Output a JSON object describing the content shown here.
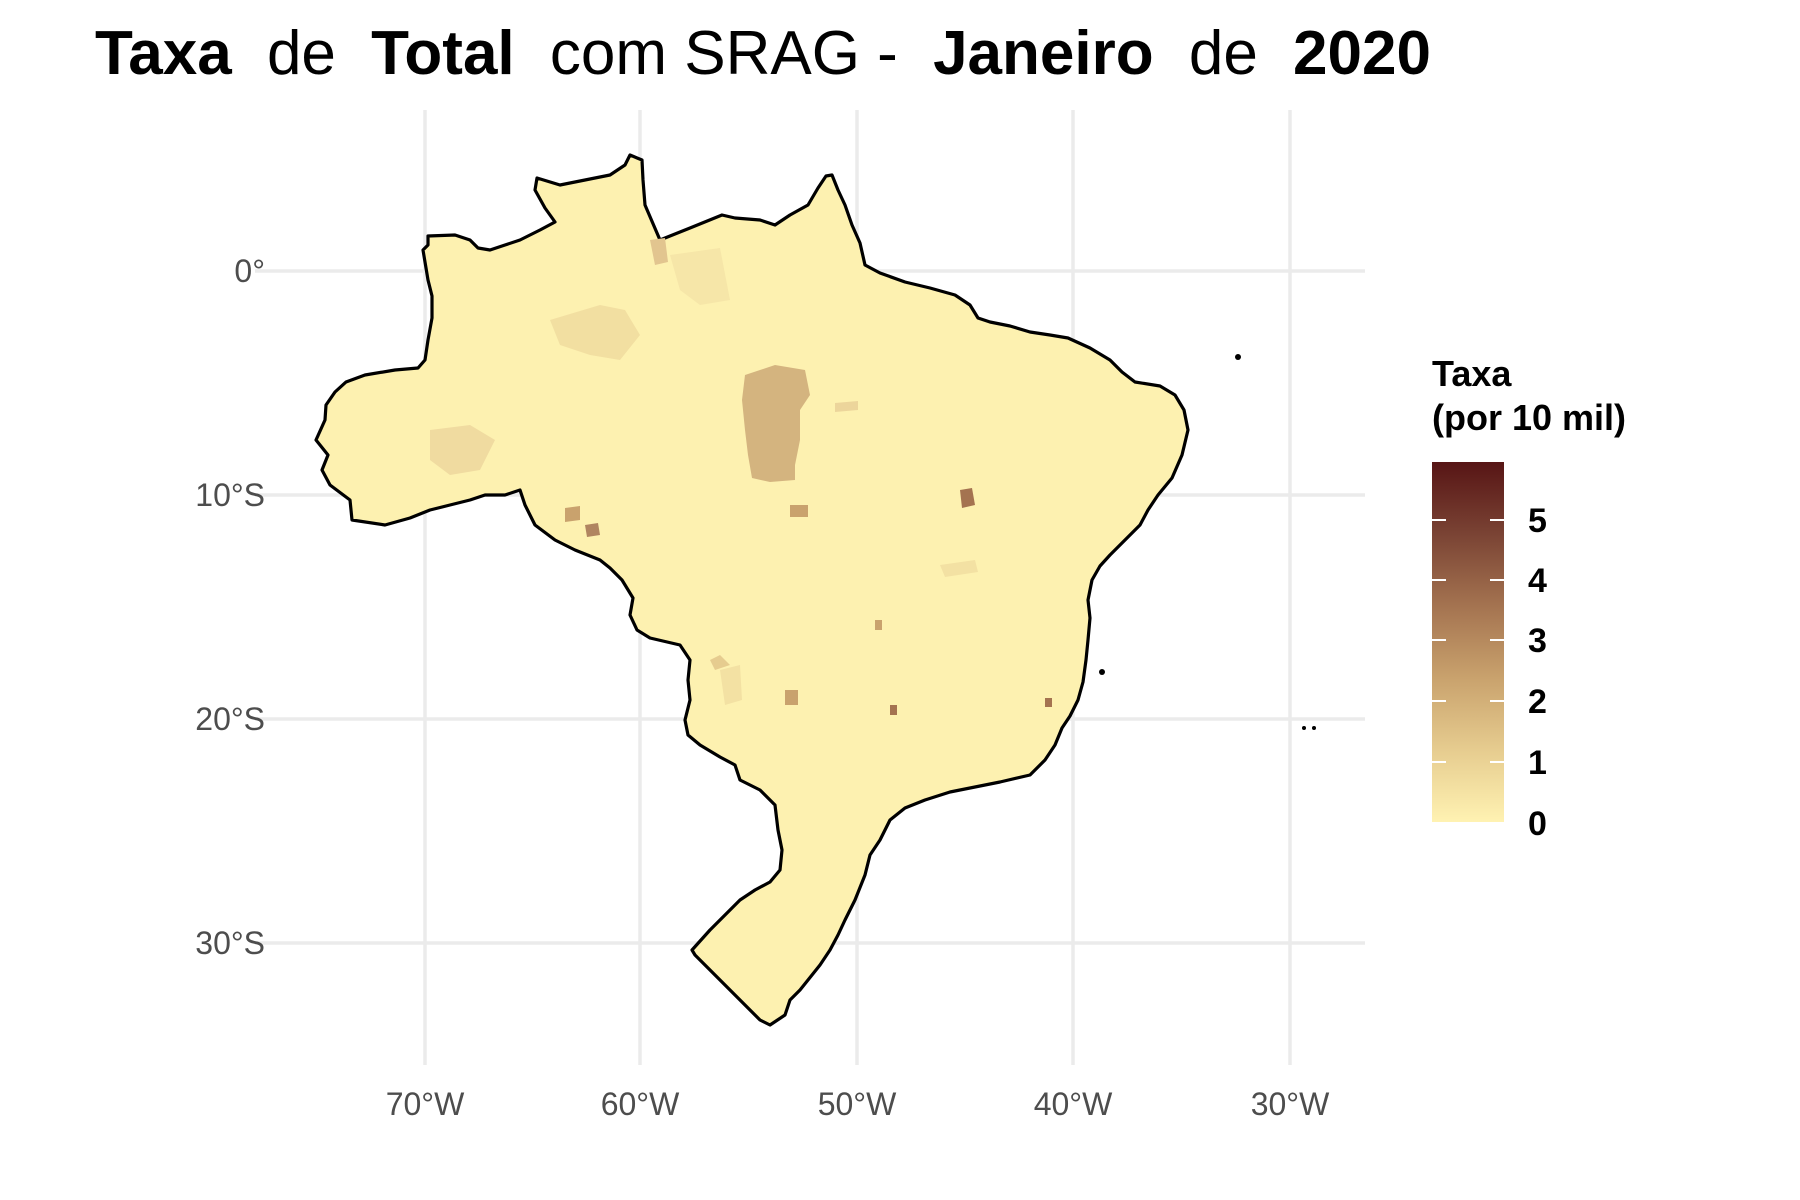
{
  "title": {
    "w1": "Taxa",
    "w2": "de",
    "w3": "Total",
    "w4": "com SRAG -",
    "w5": "Janeiro",
    "w6": "de",
    "w7": "2020"
  },
  "map": {
    "x_ticks": [
      "70°W",
      "60°W",
      "50°W",
      "40°W",
      "30°W"
    ],
    "y_ticks": [
      "0°",
      "10°S",
      "20°S",
      "30°S"
    ],
    "land_fill": "#fdf1b0",
    "border_color": "#000000",
    "grid_color": "#ebebeb"
  },
  "legend": {
    "title_line1": "Taxa",
    "title_line2": "(por 10 mil)",
    "ticks": [
      "0",
      "1",
      "2",
      "3",
      "4",
      "5"
    ],
    "colors": [
      "#fff2b2",
      "#e6cc8f",
      "#c9a26d",
      "#a47350",
      "#7a4334",
      "#571515"
    ]
  }
}
